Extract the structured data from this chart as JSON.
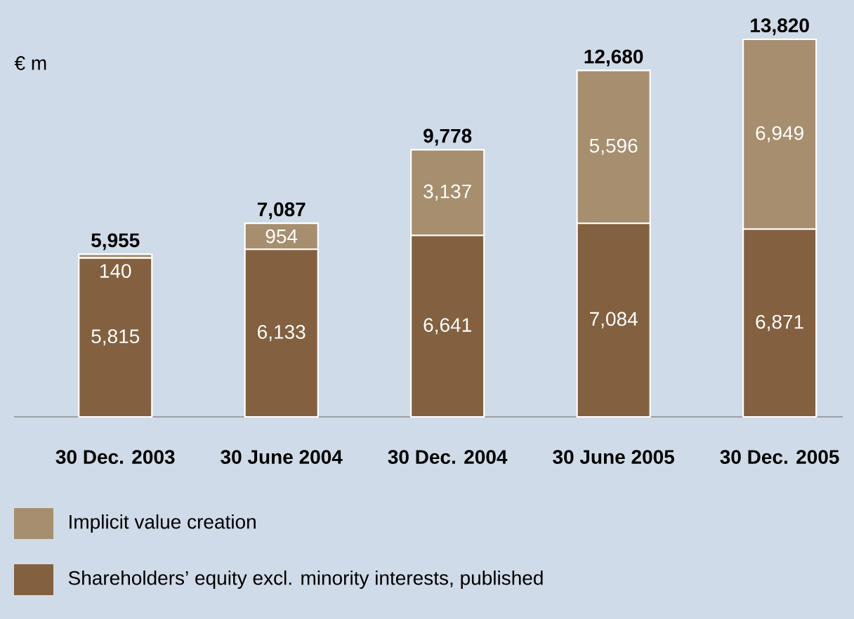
{
  "chart_data": {
    "type": "bar",
    "stacked": true,
    "ylabel": "€ m",
    "categories": [
      "30 Dec. 2003",
      "30 June 2004",
      "30 Dec. 2004",
      "30 June 2005",
      "30 Dec. 2005"
    ],
    "series": [
      {
        "name": "Shareholders’ equity excl. minority interests, published",
        "color": "#83603f",
        "values": [
          5815,
          6133,
          6641,
          7084,
          6871
        ],
        "value_labels": [
          "5,815",
          "6,133",
          "6,641",
          "7,084",
          "6,871"
        ]
      },
      {
        "name": "Implicit value creation",
        "color": "#a68e6e",
        "values": [
          140,
          954,
          3137,
          5596,
          6949
        ],
        "value_labels": [
          "140",
          "954",
          "3,137",
          "5,596",
          "6,949"
        ]
      }
    ],
    "totals": [
      "5,955",
      "7,087",
      "9,778",
      "12,680",
      "13,820"
    ],
    "legend": "bottom",
    "grid": false
  }
}
